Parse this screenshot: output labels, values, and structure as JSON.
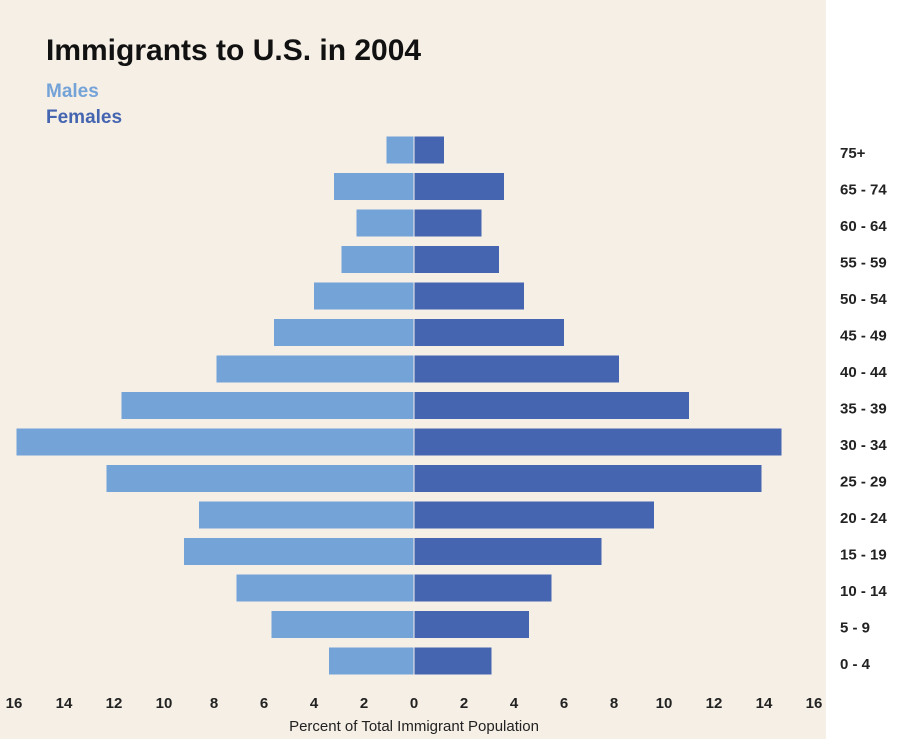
{
  "chart_data": {
    "type": "bar",
    "orientation": "horizontal-pyramid",
    "title": "Immigrants to U.S. in 2004",
    "xlabel": "Percent of Total Immigrant Population",
    "ylabel": "",
    "xlim": [
      -16,
      16
    ],
    "x_ticks": [
      16,
      14,
      12,
      10,
      8,
      6,
      4,
      2,
      0,
      2,
      4,
      6,
      8,
      10,
      12,
      14,
      16
    ],
    "x_tick_values": [
      -16,
      -14,
      -12,
      -10,
      -8,
      -6,
      -4,
      -2,
      0,
      2,
      4,
      6,
      8,
      10,
      12,
      14,
      16
    ],
    "categories": [
      "75+",
      "65 - 74",
      "60 - 64",
      "55 - 59",
      "50 - 54",
      "45 - 49",
      "40 - 44",
      "35 - 39",
      "30 - 34",
      "25 - 29",
      "20 - 24",
      "15 - 19",
      "10 - 14",
      "5 - 9",
      "0 - 4"
    ],
    "series": [
      {
        "name": "Males",
        "color": "#74a3d8",
        "values": [
          1.1,
          3.2,
          2.3,
          2.9,
          4.0,
          5.6,
          7.9,
          11.7,
          15.9,
          12.3,
          8.6,
          9.2,
          7.1,
          5.7,
          3.4
        ]
      },
      {
        "name": "Females",
        "color": "#4565b0",
        "values": [
          1.2,
          3.6,
          2.7,
          3.4,
          4.4,
          6.0,
          8.2,
          11.0,
          14.7,
          13.9,
          9.6,
          7.5,
          5.5,
          4.6,
          3.1
        ]
      }
    ],
    "legend_position": "top-left",
    "grid": false,
    "colors": {
      "plot_background": "#f5efe6",
      "page_background": "#ffffff"
    }
  }
}
